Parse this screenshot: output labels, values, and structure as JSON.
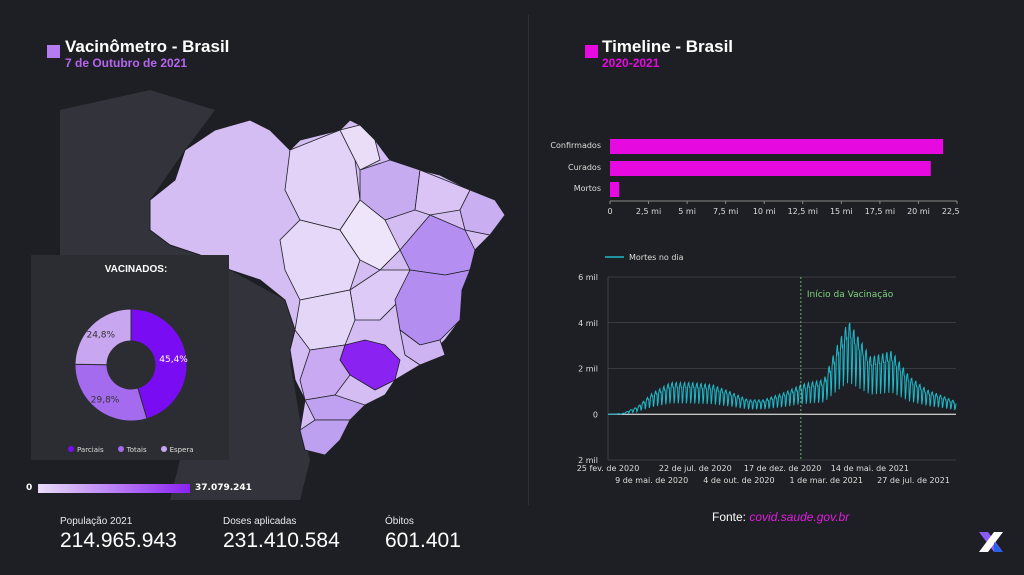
{
  "left": {
    "title": "Vacinômetro - Brasil",
    "date": "7 de Outubro de 2021",
    "title_color": "#b57bf0",
    "date_color": "#b565f0"
  },
  "right": {
    "title": "Timeline - Brasil",
    "period": "2020-2021",
    "accent": "#e60ae0"
  },
  "donut": {
    "title": "VACINADOS:",
    "slices": [
      {
        "label": "Parciais",
        "value": 45.4,
        "text": "45,4%",
        "color": "#7a0cf3"
      },
      {
        "label": "Totais",
        "value": 29.8,
        "text": "29,8%",
        "color": "#a46bee"
      },
      {
        "label": "Espera",
        "value": 24.8,
        "text": "24,8%",
        "color": "#c8a6f0"
      }
    ]
  },
  "map_scale": {
    "min": "0",
    "max": "37.079.241"
  },
  "stats": [
    {
      "label": "População 2021",
      "value": "214.965.943"
    },
    {
      "label": "Doses aplicadas",
      "value": "231.410.584"
    },
    {
      "label": "Óbitos",
      "value": "601.401"
    }
  ],
  "fonte": {
    "label": "Fonte:",
    "link": "covid.saude.gov.br"
  },
  "chart_data": [
    {
      "type": "bar",
      "orientation": "horizontal",
      "categories": [
        "Confirmados",
        "Curados",
        "Mortos"
      ],
      "values": [
        21.6,
        20.8,
        0.6
      ],
      "unit": "mi",
      "xlim": [
        0,
        22.5
      ],
      "ticks": [
        "0",
        "2,5 mi",
        "5 mi",
        "7,5 mi",
        "10 mi",
        "12,5 mi",
        "15 mi",
        "17,5 mi",
        "20 mi",
        "22,5 mi"
      ],
      "color": "#e60ae0"
    },
    {
      "type": "line",
      "series_name": "Mortes no dia",
      "color": "#1fb8c9",
      "ylim": [
        -2000,
        6000
      ],
      "yticks": [
        "6 mil",
        "4 mil",
        "2 mil",
        "0",
        "2 mil"
      ],
      "xticks_top": [
        "25 fev. de 2020",
        "22 de jul. de 2020",
        "17 de dez. de 2020",
        "14 de mai. de 2021"
      ],
      "xticks_bottom": [
        "9 de mai. de 2020",
        "4 de out. de 2020",
        "1 de mar. de 2021",
        "27 de jul. de 2021"
      ],
      "annotation": "Início da Vacinação",
      "keypoints": [
        {
          "date": "2020-02-25",
          "value": 0
        },
        {
          "date": "2020-03-20",
          "value": 20
        },
        {
          "date": "2020-04-15",
          "value": 250
        },
        {
          "date": "2020-05-10",
          "value": 700
        },
        {
          "date": "2020-06-10",
          "value": 1050
        },
        {
          "date": "2020-07-15",
          "value": 1050
        },
        {
          "date": "2020-08-20",
          "value": 980
        },
        {
          "date": "2020-09-20",
          "value": 740
        },
        {
          "date": "2020-10-20",
          "value": 480
        },
        {
          "date": "2020-11-15",
          "value": 480
        },
        {
          "date": "2020-12-20",
          "value": 720
        },
        {
          "date": "2021-01-20",
          "value": 1000
        },
        {
          "date": "2021-02-25",
          "value": 1150
        },
        {
          "date": "2021-03-20",
          "value": 2300
        },
        {
          "date": "2021-04-08",
          "value": 3100
        },
        {
          "date": "2021-04-20",
          "value": 2700
        },
        {
          "date": "2021-05-15",
          "value": 1900
        },
        {
          "date": "2021-06-20",
          "value": 2100
        },
        {
          "date": "2021-07-20",
          "value": 1250
        },
        {
          "date": "2021-08-20",
          "value": 800
        },
        {
          "date": "2021-09-20",
          "value": 560
        },
        {
          "date": "2021-10-07",
          "value": 420
        }
      ]
    }
  ]
}
